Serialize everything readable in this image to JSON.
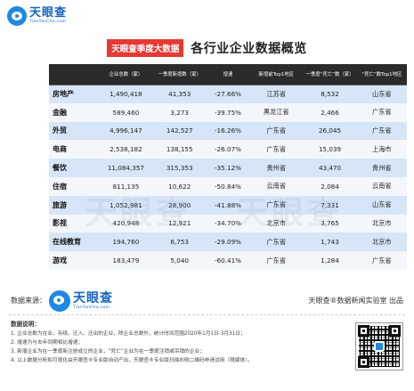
{
  "brand": {
    "name": "天眼查",
    "url": "TianYanCha.com"
  },
  "title": {
    "tag": "天眼查季度大数据",
    "main": "各行业企业数据概览"
  },
  "table": {
    "headers": [
      "",
      "企业总数（家）",
      "一季度新增数（家）",
      "增速",
      "新增前Top1地区",
      "一季度“死亡”数（家）",
      "“死亡”数Top1地区"
    ],
    "rows": [
      [
        "房地产",
        "1,490,418",
        "41,353",
        "-27.66%",
        "江苏省",
        "8,532",
        "山东省"
      ],
      [
        "金融",
        "589,460",
        "3,273",
        "-39.75%",
        "黑龙江省",
        "2,466",
        "广东省"
      ],
      [
        "外贸",
        "4,996,147",
        "142,527",
        "-16.26%",
        "广东省",
        "26,045",
        "广东省"
      ],
      [
        "电商",
        "2,538,182",
        "138,155",
        "-26.07%",
        "广东省",
        "15,039",
        "上海市"
      ],
      [
        "餐饮",
        "11,084,357",
        "315,353",
        "-35.12%",
        "贵州省",
        "43,470",
        "贵州省"
      ],
      [
        "住宿",
        "811,135",
        "10,622",
        "-50.84%",
        "云南省",
        "2,084",
        "云南省"
      ],
      [
        "旅游",
        "1,052,981",
        "28,900",
        "-41.88%",
        "广东省",
        "7,331",
        "山东省"
      ],
      [
        "影视",
        "420,948",
        "12,921",
        "-34.70%",
        "北京市",
        "3,765",
        "北京市"
      ],
      [
        "在线教育",
        "194,760",
        "6,753",
        "-29.09%",
        "广东省",
        "1,743",
        "北京市"
      ],
      [
        "游戏",
        "183,479",
        "5,040",
        "-60.41%",
        "广东省",
        "1,284",
        "广东省"
      ]
    ]
  },
  "watermark": "天眼查",
  "footer": {
    "source_label": "数据来源：",
    "credit": "天眼查®数据新闻实验室 出品"
  },
  "notes": {
    "title": "数据说明：",
    "lines": [
      "1. 企业总数为在业、存续、迁入、迁出的企业，除企业总数外，统计时间范围2020年1月1日-3月31日；",
      "2. 增速为与去年同期相比增速；",
      "3. 新增企业为在一季度新注册成立的企业，“死亡”企业为在一季度注销或吊销的企业；",
      "4. 以上数据分析和可视化由天眼查®专业版自动产出，天眼查®专业版扫描右侧二维码申请试用（限媒体）。"
    ]
  },
  "colors": {
    "header_bg": "#2b2b2b",
    "row_odd": "#d6e5f7",
    "row_even": "#f3f7fc",
    "accent_red": "#e53935",
    "brand_blue": "#1565c0"
  }
}
